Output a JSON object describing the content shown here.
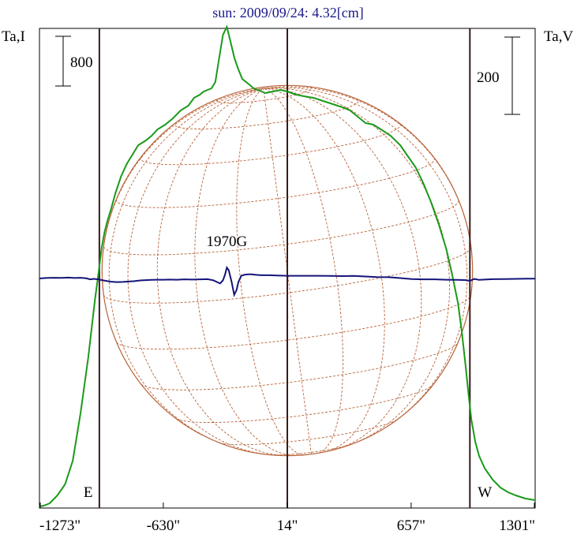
{
  "chart_data": {
    "type": "line",
    "title": "sun: 2009/09/24: 4.32[cm]",
    "left_axis_label": "Ta,I",
    "right_axis_label": "Ta,V",
    "left_scale_bar": "800",
    "right_scale_bar": "200",
    "x_tick_labels": [
      "-1273\"",
      "-630\"",
      "14\"",
      "657\"",
      "1301\""
    ],
    "x_tick_values": [
      -1273,
      -630,
      14,
      657,
      1301
    ],
    "xlim": [
      -1273,
      1301
    ],
    "limb_labels": {
      "east": "E",
      "west": "W"
    },
    "limb_positions": [
      -962,
      962
    ],
    "center_position": 14,
    "annotation": "1970G",
    "annotation_x": -300,
    "intensity_ylim": [
      0,
      2400
    ],
    "polarization_ylim": [
      -600,
      600
    ],
    "colors": {
      "intensity": "#1a9a1a",
      "polarization": "#14147a",
      "solar_disk": "#b8643a",
      "title": "#1a1a8a"
    },
    "series": [
      {
        "name": "Ta,I",
        "x": [
          -1273,
          -1250,
          -1220,
          -1180,
          -1140,
          -1100,
          -1060,
          -1020,
          -985,
          -965,
          -950,
          -935,
          -920,
          -900,
          -880,
          -850,
          -820,
          -790,
          -760,
          -720,
          -690,
          -660,
          -620,
          -580,
          -540,
          -500,
          -470,
          -440,
          -420,
          -400,
          -380,
          -360,
          -340,
          -320,
          -300,
          -280,
          -260,
          -240,
          -220,
          -200,
          -180,
          -160,
          -140,
          -100,
          -60,
          -20,
          14,
          60,
          100,
          150,
          200,
          250,
          300,
          340,
          380,
          420,
          460,
          500,
          550,
          600,
          640,
          680,
          720,
          760,
          800,
          840,
          870,
          900,
          920,
          940,
          955,
          970,
          990,
          1010,
          1040,
          1080,
          1120,
          1160,
          1200,
          1250,
          1301
        ],
        "values": [
          10,
          15,
          30,
          80,
          150,
          300,
          600,
          950,
          1320,
          1500,
          1650,
          1750,
          1820,
          1900,
          1990,
          2100,
          2180,
          2240,
          2300,
          2330,
          2360,
          2400,
          2430,
          2470,
          2520,
          2550,
          2600,
          2620,
          2640,
          2650,
          2660,
          2700,
          2850,
          3000,
          3050,
          2950,
          2850,
          2780,
          2720,
          2700,
          2680,
          2660,
          2650,
          2630,
          2640,
          2650,
          2640,
          2620,
          2610,
          2600,
          2580,
          2560,
          2540,
          2520,
          2480,
          2440,
          2430,
          2400,
          2360,
          2300,
          2230,
          2160,
          2060,
          1940,
          1800,
          1640,
          1480,
          1300,
          1120,
          900,
          720,
          560,
          420,
          330,
          250,
          180,
          130,
          100,
          80,
          60,
          50
        ]
      },
      {
        "name": "Ta,V",
        "x": [
          -1273,
          -1240,
          -1200,
          -1160,
          -1120,
          -1090,
          -1060,
          -1030,
          -1010,
          -990,
          -975,
          -962,
          -940,
          -920,
          -900,
          -870,
          -840,
          -810,
          -780,
          -750,
          -720,
          -690,
          -660,
          -630,
          -600,
          -560,
          -520,
          -480,
          -440,
          -400,
          -370,
          -350,
          -335,
          -320,
          -310,
          -300,
          -290,
          -275,
          -262,
          -250,
          -240,
          -225,
          -210,
          -190,
          -170,
          -150,
          -120,
          -80,
          -40,
          14,
          60,
          120,
          180,
          240,
          300,
          360,
          420,
          480,
          540,
          600,
          660,
          720,
          780,
          840,
          900,
          940,
          962,
          985,
          1010,
          1040,
          1080,
          1140,
          1200,
          1260,
          1301
        ],
        "values": [
          0,
          5,
          8,
          6,
          10,
          5,
          8,
          2,
          -10,
          -4,
          -8,
          -12,
          -22,
          -30,
          -36,
          -40,
          -38,
          -34,
          -30,
          -22,
          -18,
          -16,
          -14,
          -14,
          -12,
          -14,
          -10,
          -12,
          -10,
          -8,
          -20,
          -40,
          -55,
          -20,
          40,
          120,
          90,
          -40,
          -180,
          -130,
          -40,
          30,
          40,
          45,
          46,
          40,
          36,
          36,
          32,
          30,
          30,
          30,
          30,
          28,
          26,
          28,
          22,
          16,
          14,
          4,
          -6,
          -10,
          -10,
          -14,
          -16,
          -18,
          -26,
          -5,
          -16,
          -12,
          -8,
          -6,
          -4,
          -2,
          -2
        ]
      }
    ]
  }
}
